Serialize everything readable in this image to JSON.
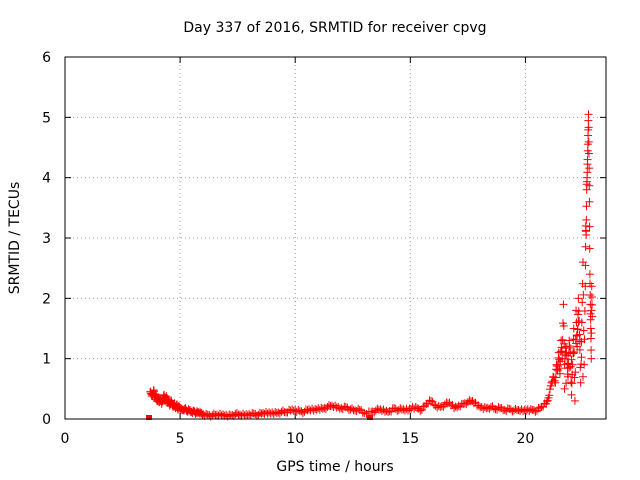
{
  "chart_data": {
    "type": "scatter",
    "title": "Day 337 of 2016, SRMTID for receiver cpvg",
    "xlabel": "GPS time / hours",
    "ylabel": "SRMTID / TECUs",
    "xlim": [
      0,
      23.5
    ],
    "ylim": [
      0,
      6
    ],
    "xticks": [
      0,
      5,
      10,
      15,
      20
    ],
    "yticks": [
      0,
      1,
      2,
      3,
      4,
      5,
      6
    ],
    "grid": true,
    "marker": "plus",
    "color": "#ff0000",
    "series": [
      {
        "name": "SRMTID",
        "x": [
          3.7,
          3.75,
          3.8,
          3.85,
          3.9,
          3.95,
          4.0,
          4.05,
          4.1,
          4.15,
          4.2,
          4.25,
          4.3,
          4.35,
          4.4,
          4.45,
          4.5,
          4.55,
          4.6,
          4.65,
          4.7,
          4.75,
          4.8,
          4.85,
          4.9,
          4.95,
          5.0,
          5.1,
          5.2,
          5.3,
          5.4,
          5.5,
          5.6,
          5.7,
          5.8,
          5.9,
          6.0,
          6.2,
          6.4,
          6.6,
          6.8,
          7.0,
          7.2,
          7.4,
          7.6,
          7.8,
          8.0,
          8.2,
          8.4,
          8.6,
          8.8,
          9.0,
          9.2,
          9.4,
          9.6,
          9.8,
          10.0,
          10.2,
          10.4,
          10.6,
          10.8,
          11.0,
          11.2,
          11.4,
          11.6,
          11.8,
          12.0,
          12.2,
          12.4,
          12.6,
          12.8,
          13.0,
          13.3,
          13.5,
          13.7,
          13.9,
          14.1,
          14.3,
          14.5,
          14.7,
          14.9,
          15.1,
          15.3,
          15.5,
          15.7,
          15.9,
          16.1,
          16.3,
          16.5,
          16.7,
          16.9,
          17.1,
          17.3,
          17.5,
          17.7,
          17.9,
          18.1,
          18.3,
          18.5,
          18.7,
          18.9,
          19.1,
          19.3,
          19.5,
          19.7,
          19.9,
          20.1,
          20.3,
          20.5,
          20.7,
          20.9,
          21.0,
          21.1,
          21.2,
          21.3,
          21.35,
          21.4,
          21.45,
          21.5,
          21.55,
          21.6,
          21.65,
          21.7,
          21.75,
          21.8,
          21.85,
          21.9,
          21.95,
          22.0,
          22.05,
          22.1,
          22.15,
          22.2,
          22.25,
          22.3,
          22.35,
          22.4,
          22.45,
          22.5,
          22.55,
          22.6,
          22.62,
          22.64,
          22.66,
          22.68,
          22.7,
          22.72,
          22.74,
          22.76,
          22.78,
          22.8,
          22.82,
          22.84,
          22.86,
          22.88,
          22.9,
          21.7,
          21.9,
          22.2,
          22.3,
          22.5
        ],
        "y": [
          0.45,
          0.42,
          0.38,
          0.48,
          0.35,
          0.4,
          0.3,
          0.36,
          0.28,
          0.34,
          0.25,
          0.33,
          0.4,
          0.3,
          0.38,
          0.27,
          0.32,
          0.22,
          0.3,
          0.25,
          0.2,
          0.26,
          0.18,
          0.24,
          0.16,
          0.2,
          0.18,
          0.15,
          0.17,
          0.13,
          0.14,
          0.12,
          0.13,
          0.1,
          0.11,
          0.09,
          0.08,
          0.07,
          0.06,
          0.07,
          0.06,
          0.07,
          0.06,
          0.08,
          0.07,
          0.06,
          0.08,
          0.09,
          0.07,
          0.1,
          0.09,
          0.11,
          0.1,
          0.12,
          0.11,
          0.14,
          0.15,
          0.13,
          0.12,
          0.16,
          0.14,
          0.18,
          0.17,
          0.2,
          0.22,
          0.19,
          0.18,
          0.2,
          0.16,
          0.14,
          0.15,
          0.1,
          0.12,
          0.14,
          0.16,
          0.12,
          0.13,
          0.18,
          0.15,
          0.16,
          0.14,
          0.2,
          0.18,
          0.15,
          0.25,
          0.3,
          0.22,
          0.2,
          0.24,
          0.27,
          0.18,
          0.22,
          0.25,
          0.28,
          0.3,
          0.22,
          0.2,
          0.18,
          0.2,
          0.16,
          0.18,
          0.15,
          0.17,
          0.14,
          0.15,
          0.13,
          0.16,
          0.15,
          0.14,
          0.2,
          0.25,
          0.35,
          0.55,
          0.7,
          0.6,
          0.9,
          0.8,
          1.1,
          0.75,
          1.3,
          1.0,
          1.9,
          0.9,
          1.2,
          1.05,
          0.7,
          1.3,
          1.1,
          0.4,
          0.9,
          1.5,
          0.3,
          1.8,
          1.2,
          2.0,
          1.4,
          0.6,
          1.6,
          2.6,
          0.9,
          2.2,
          3.2,
          3.05,
          3.8,
          4.0,
          4.3,
          4.7,
          5.05,
          4.4,
          3.6,
          2.4,
          1.9,
          1.5,
          1.0,
          2.2,
          1.7,
          0.5,
          0.85,
          1.25,
          1.6,
          0.7
        ],
        "x_extra": [
          3.65,
          13.25
        ],
        "y_extra": [
          0.0,
          0.0
        ]
      }
    ]
  }
}
